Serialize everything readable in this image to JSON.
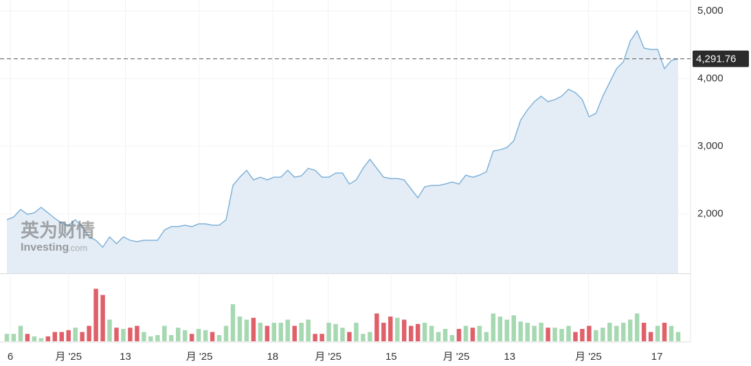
{
  "chart_data": {
    "type": "area",
    "xlim": [
      0,
      98
    ],
    "xticks": [
      {
        "value": 0.5,
        "label": "6"
      },
      {
        "value": 9,
        "label": "月 '25"
      },
      {
        "value": 17.3,
        "label": "13"
      },
      {
        "value": 28.1,
        "label": "月 '25"
      },
      {
        "value": 38.8,
        "label": "18"
      },
      {
        "value": 46.9,
        "label": "月 '25"
      },
      {
        "value": 56.1,
        "label": "15"
      },
      {
        "value": 65.6,
        "label": "月 '25"
      },
      {
        "value": 73.4,
        "label": "13"
      },
      {
        "value": 84.9,
        "label": "月 '25"
      },
      {
        "value": 94.9,
        "label": "17"
      }
    ],
    "ylim": [
      1120,
      5100
    ],
    "yticks": [
      {
        "value": 2000,
        "label": "2,000"
      },
      {
        "value": 3000,
        "label": "3,000"
      },
      {
        "value": 4000,
        "label": "4,000"
      },
      {
        "value": 5000,
        "label": "5,000"
      }
    ],
    "grid": true,
    "line_color": "#7fb2d9",
    "fill_color": "#e4edf5",
    "values": [
      1912,
      1953,
      2064,
      1993,
      2014,
      2095,
      2014,
      1933,
      1861,
      1831,
      1912,
      1810,
      1658,
      1608,
      1506,
      1658,
      1557,
      1658,
      1608,
      1587,
      1608,
      1608,
      1608,
      1760,
      1810,
      1810,
      1831,
      1810,
      1851,
      1851,
      1831,
      1831,
      1912,
      2420,
      2541,
      2643,
      2501,
      2541,
      2501,
      2541,
      2541,
      2643,
      2541,
      2562,
      2673,
      2643,
      2541,
      2541,
      2602,
      2602,
      2440,
      2501,
      2673,
      2805,
      2673,
      2541,
      2521,
      2521,
      2501,
      2369,
      2237,
      2399,
      2420,
      2420,
      2440,
      2470,
      2440,
      2572,
      2541,
      2572,
      2622,
      2927,
      2947,
      2978,
      3079,
      3384,
      3536,
      3658,
      3739,
      3658,
      3689,
      3739,
      3841,
      3790,
      3689,
      3435,
      3486,
      3739,
      3942,
      4145,
      4247,
      4552,
      4704,
      4450,
      4430,
      4430,
      4145,
      4267,
      4290
    ],
    "last_price": {
      "value": 4291.76,
      "label": "4,291.76"
    },
    "volume": {
      "ylim": [
        0,
        100
      ],
      "up_color": "#a6d9b1",
      "down_color": "#e0606a",
      "values": [
        12,
        12,
        25,
        12,
        8,
        5,
        8,
        15,
        15,
        18,
        22,
        15,
        25,
        85,
        75,
        35,
        22,
        20,
        22,
        25,
        15,
        8,
        10,
        25,
        10,
        22,
        18,
        12,
        20,
        18,
        15,
        10,
        25,
        60,
        40,
        35,
        38,
        30,
        25,
        30,
        30,
        35,
        25,
        30,
        35,
        12,
        12,
        30,
        28,
        22,
        15,
        30,
        12,
        15,
        45,
        30,
        40,
        38,
        35,
        25,
        28,
        30,
        25,
        15,
        20,
        10,
        20,
        25,
        22,
        25,
        15,
        45,
        40,
        35,
        42,
        32,
        30,
        25,
        30,
        22,
        22,
        20,
        25,
        15,
        20,
        25,
        18,
        22,
        30,
        25,
        30,
        35,
        45,
        30,
        15,
        25,
        30,
        25,
        15
      ]
    },
    "watermark": {
      "brand": "英为财情",
      "site": "Investing",
      "domain": ".com"
    }
  }
}
